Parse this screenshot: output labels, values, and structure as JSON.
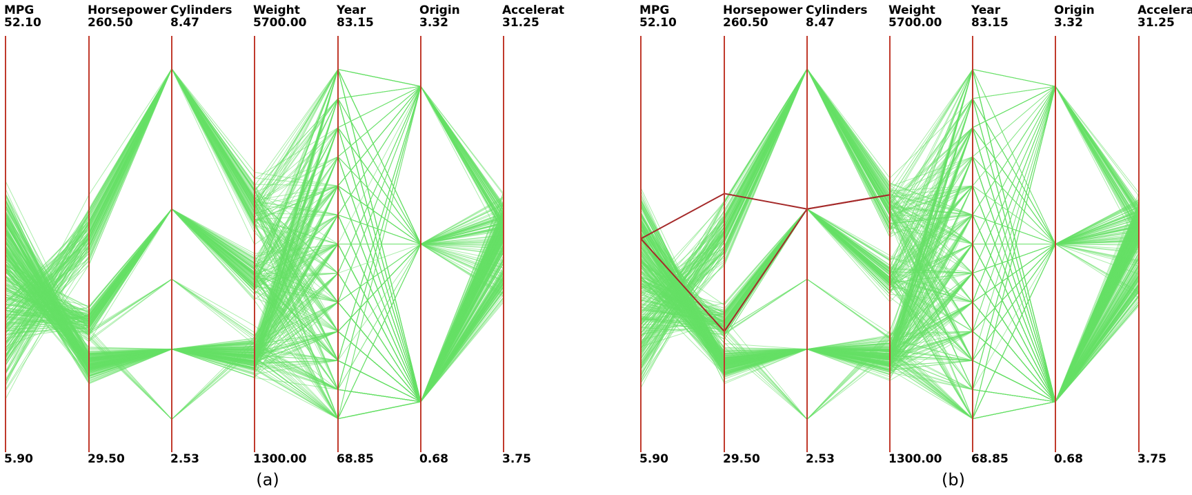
{
  "chart_data": [
    {
      "type": "parallel-coordinates",
      "panel_label": "(a)",
      "line_color": "#66e066",
      "axis_color": "#c0392b",
      "axes": [
        {
          "name": "MPG",
          "max": "52.10",
          "min": "5.90"
        },
        {
          "name": "Horsepower",
          "max": "260.50",
          "min": "29.50"
        },
        {
          "name": "Cylinders",
          "max": "8.47",
          "min": "2.53"
        },
        {
          "name": "Weight",
          "max": "5700.00",
          "min": "1300.00"
        },
        {
          "name": "Year",
          "max": "83.15",
          "min": "68.85"
        },
        {
          "name": "Origin",
          "max": "3.32",
          "min": "0.68"
        },
        {
          "name": "Accelerat",
          "max": "31.25",
          "min": "3.75"
        }
      ],
      "highlighted_polylines": []
    },
    {
      "type": "parallel-coordinates",
      "panel_label": "(b)",
      "line_color": "#66e066",
      "axis_color": "#c0392b",
      "highlight_color": "#a52a2a",
      "axes": [
        {
          "name": "MPG",
          "max": "52.10",
          "min": "5.90"
        },
        {
          "name": "Horsepower",
          "max": "260.50",
          "min": "29.50"
        },
        {
          "name": "Cylinders",
          "max": "8.47",
          "min": "2.53"
        },
        {
          "name": "Weight",
          "max": "5700.00",
          "min": "1300.00"
        },
        {
          "name": "Year",
          "max": "83.15",
          "min": "68.85"
        },
        {
          "name": "Origin",
          "max": "3.32",
          "min": "0.68"
        },
        {
          "name": "Accelerat",
          "max": "31.25",
          "min": "3.75"
        }
      ],
      "highlighted_polylines": [
        [
          29.6,
          96.5,
          6.0,
          4020
        ],
        [
          29.6,
          173.0,
          6.0,
          4020
        ]
      ]
    }
  ]
}
